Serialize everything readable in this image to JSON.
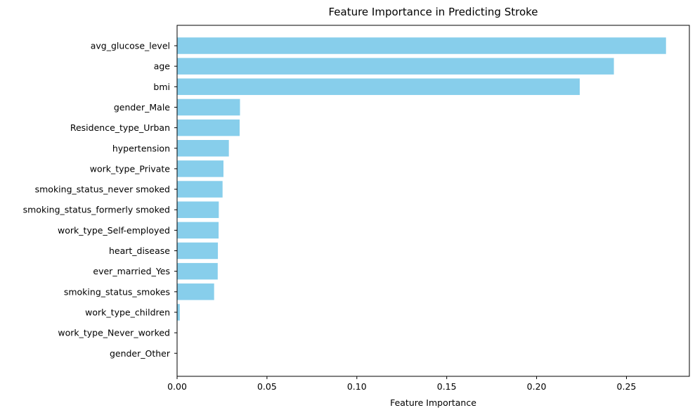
{
  "chart_data": {
    "type": "bar",
    "orientation": "horizontal",
    "title": "Feature Importance in Predicting Stroke",
    "xlabel": "Feature Importance",
    "ylabel": "",
    "xlim": [
      0,
      0.285
    ],
    "xticks": [
      0.0,
      0.05,
      0.1,
      0.15,
      0.2,
      0.25
    ],
    "xtick_labels": [
      "0.00",
      "0.05",
      "0.10",
      "0.15",
      "0.20",
      "0.25"
    ],
    "grid": false,
    "bar_color": "#87ceeb",
    "categories": [
      "avg_glucose_level",
      "age",
      "bmi",
      "gender_Male",
      "Residence_type_Urban",
      "hypertension",
      "work_type_Private",
      "smoking_status_never smoked",
      "smoking_status_formerly smoked",
      "work_type_Self-employed",
      "heart_disease",
      "ever_married_Yes",
      "smoking_status_smokes",
      "work_type_children",
      "work_type_Never_worked",
      "gender_Other"
    ],
    "values": [
      0.272,
      0.243,
      0.224,
      0.035,
      0.0348,
      0.0288,
      0.0258,
      0.0253,
      0.0232,
      0.0231,
      0.0227,
      0.0226,
      0.0206,
      0.0015,
      0.0001,
      0.0
    ]
  }
}
